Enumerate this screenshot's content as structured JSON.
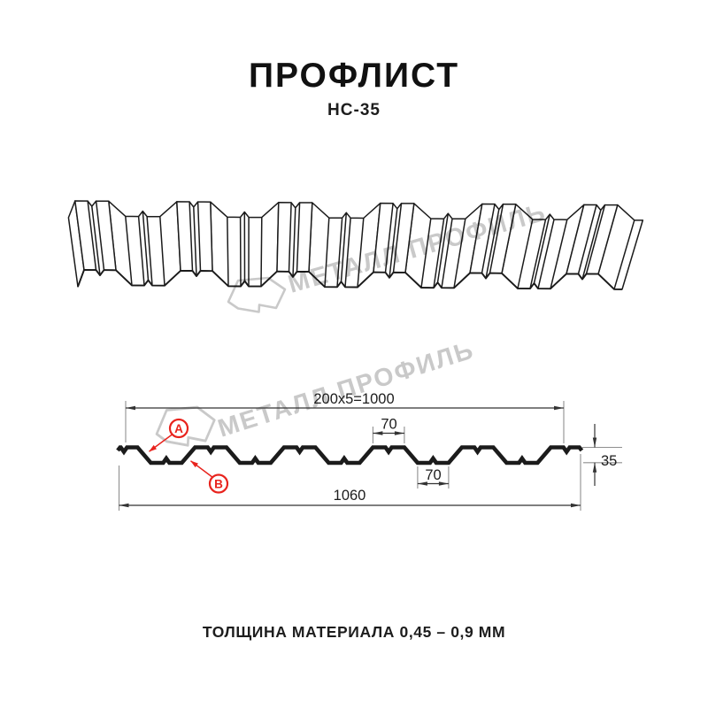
{
  "header": {
    "title": "ПРОФЛИСТ",
    "subtitle": "НС-35"
  },
  "watermark": {
    "text": "МЕТАЛЛ ПРОФИЛЬ",
    "color": "#c9c9c9"
  },
  "section": {
    "dims": {
      "working_width": "200x5=1000",
      "crest_width": "70",
      "valley_width": "70",
      "height": "35",
      "total_width": "1060"
    },
    "callouts": {
      "a": "A",
      "b": "B"
    }
  },
  "footer": {
    "note": "ТОЛЩИНА МАТЕРИАЛА 0,45 – 0,9 ММ"
  },
  "colors": {
    "accent": "#e8231d",
    "line": "#1b1b1b",
    "watermark": "#c9c9c9",
    "extension_lines": "#8f8f8f"
  }
}
